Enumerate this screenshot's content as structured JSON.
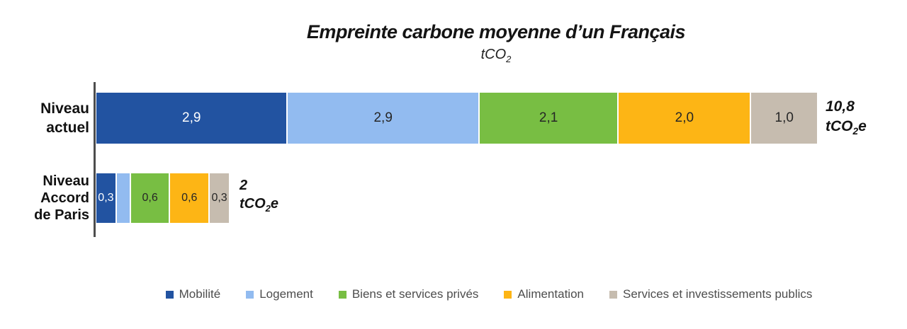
{
  "title": "Empreinte carbone moyenne d’un Français",
  "subtitle_unit": {
    "pre": "tCO",
    "sub": "2",
    "post": ""
  },
  "unit": {
    "pre": "tCO",
    "sub": "2",
    "post": "e"
  },
  "rows": [
    {
      "label_lines": [
        "Niveau",
        "actuel",
        ""
      ],
      "total_value": "10,8",
      "segment_labels": [
        "2,9",
        "2,9",
        "2,1",
        "2,0",
        "1,0"
      ]
    },
    {
      "label_lines": [
        "Niveau",
        "Accord",
        "de Paris"
      ],
      "total_value": "2",
      "segment_labels": [
        "0,3",
        "",
        "0,6",
        "0,6",
        "0,3"
      ]
    }
  ],
  "colors": {
    "axis": "#4d4d4d",
    "value_text_dark": "#262626",
    "value_text_light": "#ffffff",
    "legend_text": "#4d4d4d"
  },
  "chart_data": {
    "type": "bar",
    "orientation": "horizontal_stacked",
    "title": "Empreinte carbone moyenne d’un Français",
    "unit_label": "tCO2",
    "categories": [
      "Niveau actuel",
      "Niveau Accord de Paris"
    ],
    "series": [
      {
        "name": "Mobilité",
        "color": "#2253A1",
        "values": [
          2.9,
          0.3
        ]
      },
      {
        "name": "Logement",
        "color": "#92BBF0",
        "values": [
          2.9,
          0.2
        ]
      },
      {
        "name": "Biens et services privés",
        "color": "#78BE43",
        "values": [
          2.1,
          0.6
        ]
      },
      {
        "name": "Alimentation",
        "color": "#FDB515",
        "values": [
          2.0,
          0.6
        ]
      },
      {
        "name": "Services et investissements publics",
        "color": "#C6BCAF",
        "values": [
          1.0,
          0.3
        ]
      }
    ],
    "totals": [
      10.8,
      2
    ],
    "totals_display": [
      "10,8 tCO2e",
      "2 tCO2e"
    ],
    "xlim": [
      0,
      10.8
    ],
    "grid": false,
    "legend_position": "bottom"
  }
}
